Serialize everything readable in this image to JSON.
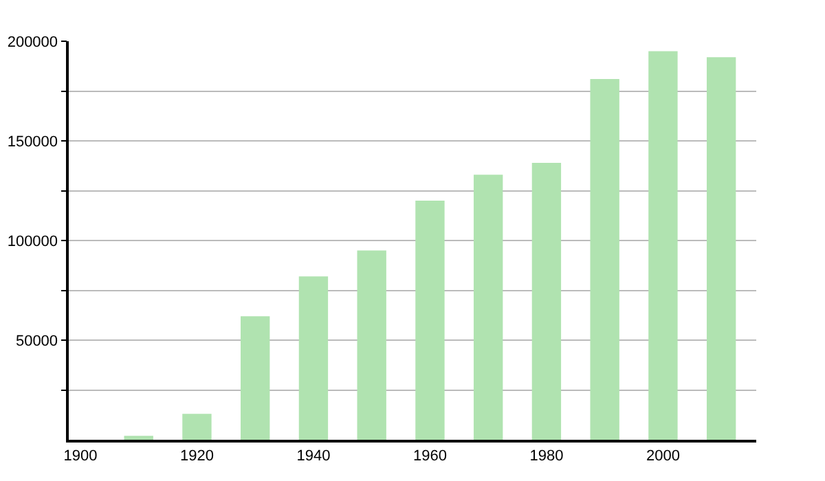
{
  "chart_data": {
    "type": "bar",
    "x": [
      1910,
      1920,
      1930,
      1940,
      1950,
      1960,
      1970,
      1980,
      1990,
      2000,
      2010
    ],
    "values": [
      2000,
      13000,
      62000,
      82000,
      95000,
      120000,
      133000,
      139000,
      181000,
      195000,
      192000
    ],
    "color": "#b0e3b0",
    "xlim": [
      1898,
      2016
    ],
    "xticks": [
      1900,
      1920,
      1940,
      1960,
      1980,
      2000
    ],
    "ylim": [
      0,
      200000
    ],
    "yticks": [
      {
        "value": 25000,
        "label": null
      },
      50000,
      {
        "value": 75000,
        "label": null
      },
      100000,
      {
        "value": 125000,
        "label": null
      },
      150000,
      {
        "value": 175000,
        "label": null
      },
      200000
    ],
    "grid": "y"
  }
}
